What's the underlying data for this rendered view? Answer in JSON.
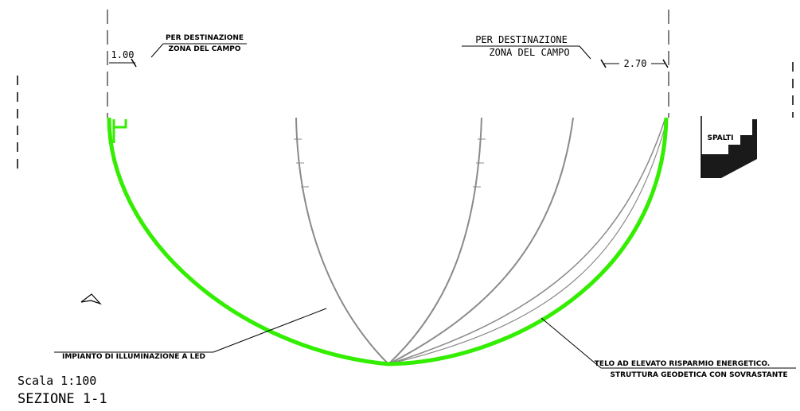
{
  "labels": {
    "zone_left_top": "PER DESTINAZIONE",
    "zone_left_bottom": "ZONA DEL CAMPO",
    "zone_right_top": "PER DESTINAZIONE",
    "zone_right_bottom": "ZONA DEL CAMPO",
    "dim_left": "1.00",
    "dim_right": "2.70",
    "led_label": "IMPIANTO DI ILLUMINAZIONE A LED",
    "structure_line1": "TELO AD ELEVATO RISPARMIO ENERGETICO.",
    "structure_line2": "STRUTTURA GEODETICA CON SOVRASTANTE",
    "seat_label": "SPALTI",
    "scale": "Scala 1:100",
    "section_title": "SEZIONE 1-1"
  },
  "colors": {
    "structure": "#33ee00",
    "ribs": "#8a8a8a",
    "ink": "#000000"
  }
}
